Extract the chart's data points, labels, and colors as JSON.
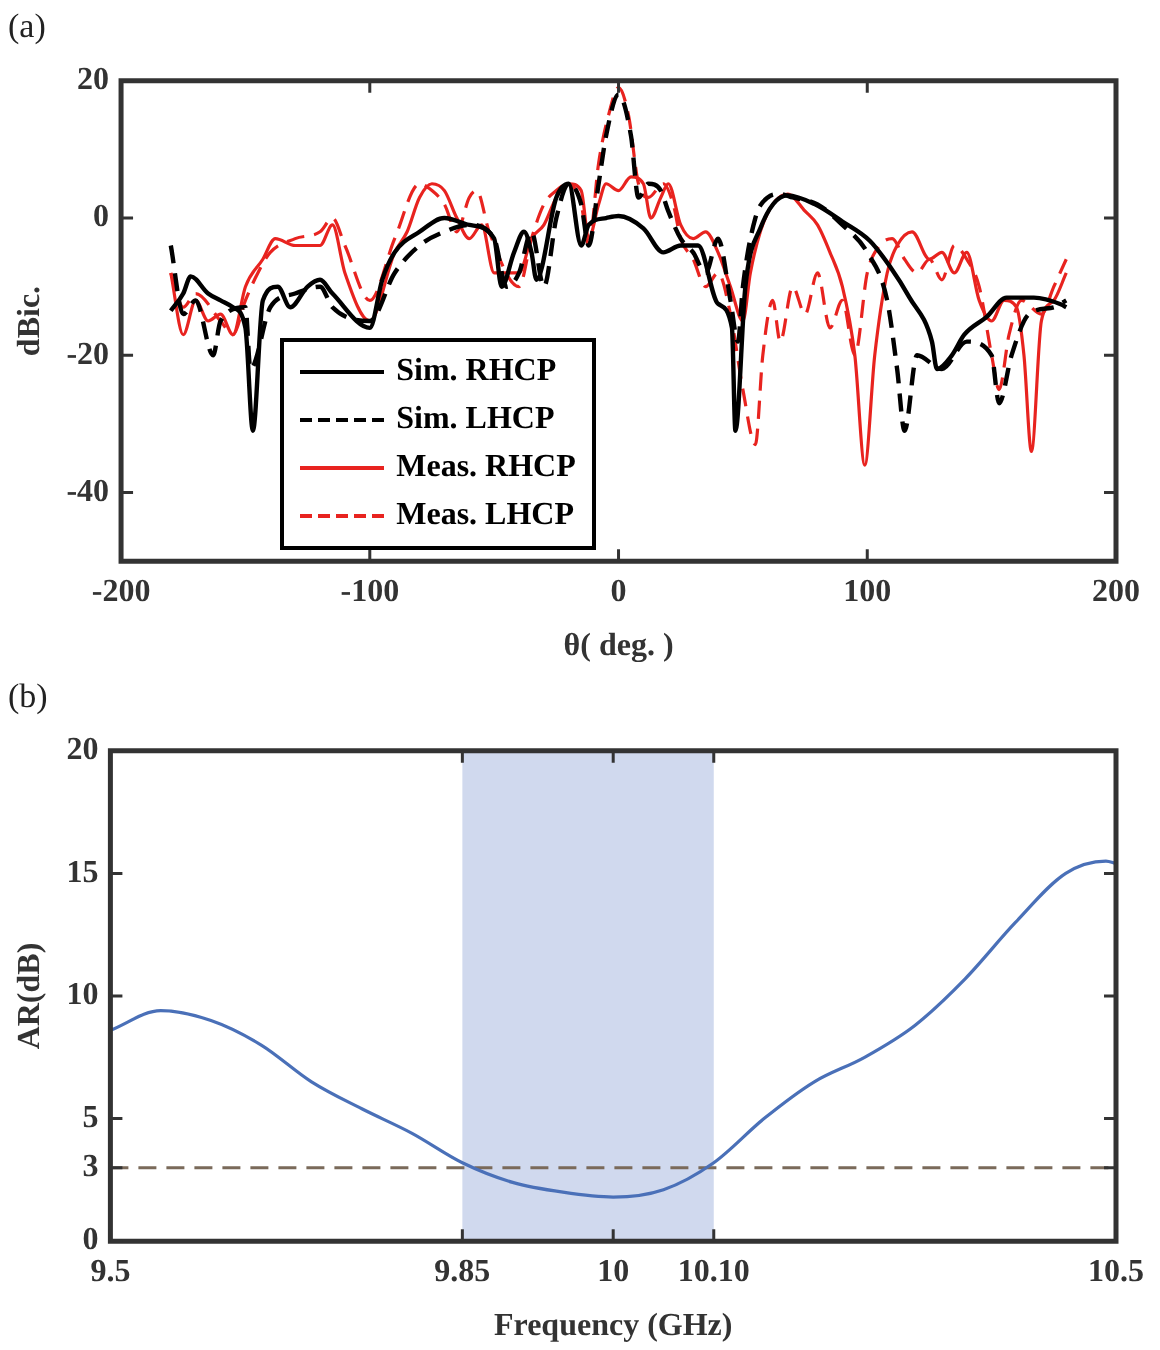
{
  "chart_data": [
    {
      "type": "line",
      "title": "(a)",
      "xlabel": "θ( deg. )",
      "ylabel": "dBic.",
      "xlim": [
        -200,
        200
      ],
      "xticks": [
        -200,
        -100,
        0,
        100,
        200
      ],
      "ylim": [
        -50,
        20
      ],
      "yticks": [
        -40,
        -20,
        0,
        20
      ],
      "grid": false,
      "marker": "none",
      "legend": "bottom left",
      "series": [
        {
          "name": "Sim. RHCP",
          "color": "#000000",
          "line_style": "solid",
          "x": [
            -180,
            -175,
            -172,
            -165,
            -160,
            -155,
            -150,
            -147,
            -143,
            -137,
            -132,
            -125,
            -120,
            -115,
            -100,
            -95,
            -90,
            -80,
            -70,
            -60,
            -50,
            -47,
            -42,
            -38,
            -35,
            -33,
            -25,
            -20,
            -15,
            -12,
            -5,
            0,
            10,
            18,
            25,
            32,
            40,
            45.6,
            47,
            51,
            57,
            68,
            79,
            90,
            101,
            109,
            117,
            126,
            128,
            134,
            139,
            148,
            156,
            167,
            178,
            180
          ],
          "values": [
            -13.5,
            -11,
            -8.5,
            -11,
            -12,
            -13,
            -16,
            -31,
            -12,
            -10,
            -13,
            -10,
            -9,
            -11,
            -16,
            -9,
            -5,
            -2,
            0,
            -1,
            -3,
            -10,
            -5,
            -2,
            -5,
            -9,
            3,
            5,
            -4,
            -1,
            0,
            0.3,
            -1.5,
            -5,
            -4,
            -4,
            -12.5,
            -16,
            -31,
            -10,
            -1.5,
            3.3,
            2,
            -0.5,
            -3.3,
            -7,
            -11.6,
            -18,
            -22,
            -20,
            -17,
            -14.4,
            -11.6,
            -11.6,
            -12.6,
            -13
          ]
        },
        {
          "name": "Sim. LHCP",
          "color": "#000000",
          "line_style": "dashed",
          "x": [
            -180,
            -175,
            -170,
            -163,
            -160,
            -150,
            -148,
            -140,
            -130,
            -120,
            -115,
            -100,
            -90,
            -80,
            -70,
            -60,
            -50,
            -45,
            -40,
            -35,
            -30,
            -25,
            -20,
            -15,
            -12,
            -8,
            -5,
            0,
            5,
            8,
            12,
            17,
            20,
            25,
            30,
            35,
            40,
            45,
            48,
            50,
            55,
            60,
            65,
            70,
            80,
            90,
            100,
            108,
            112,
            115,
            120,
            130,
            140,
            150,
            153,
            158,
            165,
            175,
            180
          ],
          "values": [
            -4,
            -14,
            -12,
            -20,
            -15,
            -13,
            -22,
            -13,
            -11,
            -10,
            -13,
            -15,
            -8,
            -4,
            -2,
            -1,
            -3,
            -10,
            -8,
            -2,
            -10,
            0,
            5,
            2,
            -4,
            5,
            12,
            18,
            12,
            3,
            5,
            4,
            1,
            -3,
            -5,
            -8,
            -3,
            -12,
            -18,
            -10,
            0,
            3,
            3.5,
            3,
            2,
            -1,
            -5,
            -12,
            -22,
            -31,
            -20,
            -22,
            -18,
            -20,
            -27,
            -20,
            -14,
            -13,
            -12
          ]
        },
        {
          "name": "Meas. RHCP",
          "color": "#e8231f",
          "line_style": "solid",
          "x": [
            -180,
            -175,
            -170,
            -165,
            -160,
            -155,
            -150,
            -143,
            -138,
            -130,
            -120,
            -115,
            -110,
            -100,
            -90,
            -85,
            -80,
            -75,
            -70,
            -65,
            -60,
            -55,
            -50,
            -40,
            -35,
            -30,
            -25,
            -20,
            -15,
            -12,
            -8,
            -5,
            0,
            5,
            10,
            13,
            17,
            20,
            25,
            30,
            35,
            40,
            45,
            50,
            53,
            57,
            62,
            68,
            75,
            80,
            85,
            90,
            95,
            99,
            103,
            108,
            112,
            118,
            125,
            130,
            135,
            140,
            145,
            150,
            155,
            160,
            163,
            166,
            170,
            175,
            180
          ],
          "values": [
            -8,
            -17,
            -12,
            -15,
            -14,
            -17,
            -10,
            -6,
            -3,
            -4,
            -4,
            -1,
            -8,
            -15,
            -5,
            -2,
            3,
            5,
            4,
            0,
            -3,
            -1,
            -8,
            -8,
            -3,
            -1,
            3,
            5,
            4,
            -3,
            2,
            5,
            4,
            6,
            5,
            0,
            3,
            5,
            -1,
            -3,
            -2,
            -5,
            -10,
            -15,
            -8,
            -2,
            2,
            3.5,
            1,
            -1,
            -5,
            -10,
            -20,
            -36,
            -20,
            -8,
            -4,
            -2,
            -6,
            -5,
            -8,
            -5,
            -12,
            -15,
            -12,
            -13,
            -20,
            -34,
            -15,
            -12,
            -8
          ]
        },
        {
          "name": "Meas. LHCP",
          "color": "#e8231f",
          "line_style": "dashed",
          "x": [
            -180,
            -175,
            -170,
            -160,
            -155,
            -150,
            -145,
            -140,
            -130,
            -120,
            -115,
            -110,
            -100,
            -90,
            -80,
            -75,
            -70,
            -65,
            -60,
            -57,
            -52,
            -40,
            -35,
            -30,
            -25,
            -20,
            -15,
            -12,
            -8,
            -4,
            0,
            4,
            8,
            12,
            18,
            22,
            25,
            30,
            35,
            40,
            45,
            50,
            55,
            58,
            62,
            65,
            70,
            75,
            80,
            85,
            90,
            95,
            100,
            105,
            110,
            115,
            120,
            125,
            130,
            135,
            140,
            145,
            150,
            153,
            157,
            162,
            170,
            175,
            180
          ],
          "values": [
            -8,
            -13,
            -11,
            -15,
            -17,
            -12,
            -8,
            -5,
            -3,
            -2,
            0,
            -4,
            -12,
            -3,
            5,
            4,
            2,
            -2,
            3,
            4,
            -2,
            -10,
            -3,
            2,
            4,
            5,
            2,
            -4,
            8,
            15,
            19,
            15,
            5,
            3,
            5,
            2,
            -3,
            -6,
            -10,
            -8,
            -14,
            -25,
            -33,
            -20,
            -12,
            -18,
            -10,
            -14,
            -8,
            -16,
            -12,
            -20,
            -8,
            -4,
            -3,
            -6,
            -8,
            -6,
            -9,
            -4,
            -6,
            -10,
            -20,
            -25,
            -17,
            -12,
            -14,
            -10,
            -6
          ]
        }
      ]
    },
    {
      "type": "line",
      "title": "(b)",
      "xlabel": "Frequency (GHz)",
      "ylabel": "AR(dB)",
      "xlim": [
        9.5,
        10.5
      ],
      "xticks": [
        9.5,
        9.85,
        10,
        {
          "value": 10.1,
          "label": "10.10"
        },
        10.5
      ],
      "ylim": [
        0,
        20
      ],
      "yticks": [
        0,
        3,
        5,
        10,
        15,
        20
      ],
      "grid": false,
      "marker": "none",
      "legend": false,
      "color": "#4a70b8",
      "x": [
        9.5,
        9.55,
        9.6,
        9.65,
        9.7,
        9.75,
        9.8,
        9.85,
        9.9,
        9.95,
        10,
        10.05,
        10.1,
        10.15,
        10.2,
        10.25,
        10.3,
        10.35,
        10.4,
        10.45,
        10.49,
        10.5
      ],
      "values": [
        8.6,
        9.4,
        9.0,
        8.0,
        6.5,
        5.4,
        4.4,
        3.2,
        2.4,
        2,
        1.8,
        2.1,
        3.2,
        5,
        6.5,
        7.5,
        8.8,
        10.7,
        13,
        15,
        15.5,
        15.4
      ],
      "bands": [
        {
          "axis": "x",
          "from": 9.85,
          "to": 10.1,
          "color": "#d0d9ee"
        }
      ],
      "ref_lines": [
        {
          "axis": "y",
          "value": 3,
          "color": "#7a6a5a",
          "line_style": "dashed"
        }
      ]
    }
  ]
}
